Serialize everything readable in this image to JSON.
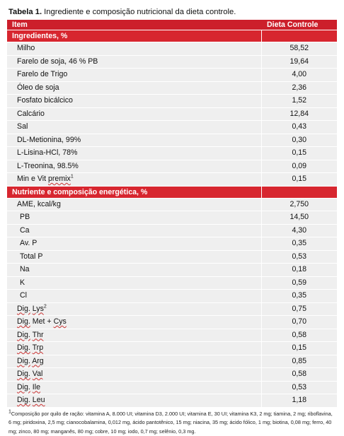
{
  "caption": {
    "label": "Tabela 1.",
    "text": " Ingrediente e composição nutricional da dieta controle."
  },
  "header": {
    "col_item": "Item",
    "col_value": "Dieta Controle"
  },
  "ingredients": {
    "title": "Ingredientes, %",
    "rows": [
      {
        "name": "Milho",
        "value": "58,52"
      },
      {
        "name": "Farelo de soja, 46 % PB",
        "value": "19,64"
      },
      {
        "name": "Farelo de Trigo",
        "value": "4,00"
      },
      {
        "name": "Óleo de soja",
        "value": "2,36"
      },
      {
        "name": "Fosfato bicálcico",
        "value": "1,52"
      },
      {
        "name": "Calcário",
        "value": "12,84"
      },
      {
        "name": "Sal",
        "value": "0,43"
      },
      {
        "name": "DL-Metionina, 99%",
        "value": "0,30"
      },
      {
        "name": "L-Lisina-HCl, 78%",
        "value": "0,15"
      },
      {
        "name": "L-Treonina, 98.5%",
        "value": "0,09"
      },
      {
        "name": "Min e Vit premix",
        "sup": "1",
        "value": "0,15"
      }
    ]
  },
  "nutrients": {
    "title": "Nutriente e composição energética, %",
    "rows": [
      {
        "name": "AME, kcal/kg",
        "value": "2,750"
      },
      {
        "name": "PB",
        "value": "14,50"
      },
      {
        "name": "Ca",
        "value": "4,30"
      },
      {
        "name": "Av. P",
        "value": "0,35"
      },
      {
        "name": "Total P",
        "value": "0,53"
      },
      {
        "name": "Na",
        "value": "0,18"
      },
      {
        "name": "K",
        "value": "0,59"
      },
      {
        "name": "Cl",
        "value": "0,35"
      },
      {
        "name": "Dig. Lys",
        "sup": "2",
        "value": "0,75"
      },
      {
        "name": "Dig. Met + Cys",
        "value": "0,70"
      },
      {
        "name": "Dig. Thr",
        "value": "0,58"
      },
      {
        "name": "Dig. Trp",
        "value": "0,15"
      },
      {
        "name": "Dig. Arg",
        "value": "0,85"
      },
      {
        "name": "Dig. Val",
        "value": "0,58"
      },
      {
        "name": "Dig. Ile",
        "value": "0,53"
      },
      {
        "name": "Dig. Leu",
        "value": "1,18"
      }
    ]
  },
  "footnote": {
    "marker": "1",
    "text": "Composição por quilo de ração: vitamina A, 8.000 UI; vitamina D3, 2.000 UI; vitamina E, 30 UI; vitamina K3, 2 mg; tiamina, 2 mg; riboflavina, 6 mg; piridoxina, 2,5 mg; cianocobalamina, 0,012 mg, ácido pantotênico, 15 mg; niacina, 35 mg; ácido fólico, 1 mg; biotina, 0,08 mg; ferro, 40 mg; zinco, 80 mg; manganês, 80 mg; cobre, 10 mg; iodo, 0,7 mg; selênio, 0,3 mg."
  },
  "colors": {
    "header_red": "#cc1f2b",
    "section_red": "#d7262f",
    "row_gray": "#efefef"
  }
}
